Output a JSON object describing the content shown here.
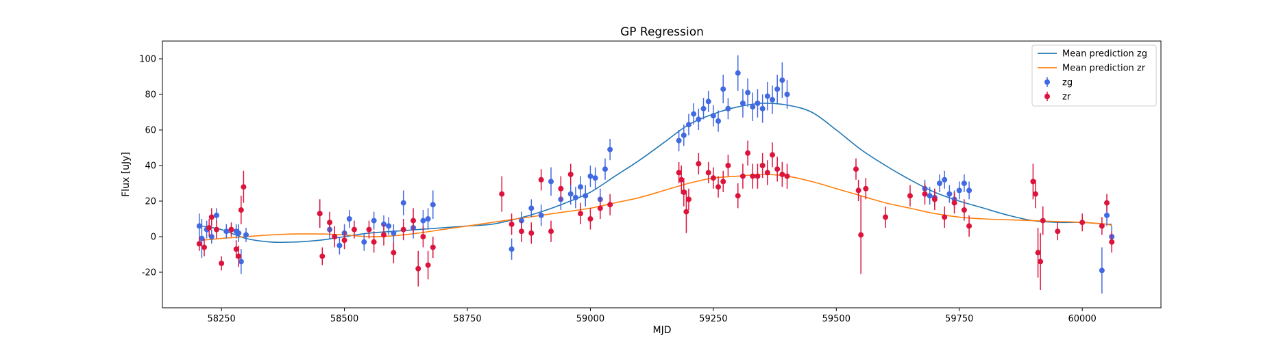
{
  "chart_data": {
    "type": "scatter",
    "title": "GP Regression",
    "xlabel": "MJD",
    "ylabel": "Flux [uJy]",
    "xlim": [
      58130,
      60160
    ],
    "ylim": [
      -40,
      110
    ],
    "xticks": [
      58250,
      58500,
      58750,
      59000,
      59250,
      59500,
      59750,
      60000
    ],
    "yticks": [
      -20,
      0,
      20,
      40,
      60,
      80,
      100
    ],
    "grid": false,
    "legend_position": "top-right",
    "colors": {
      "mean_zg": "#1f77b4",
      "mean_zr": "#ff7f0e",
      "obs_zg": "#4169e1",
      "obs_zr": "#dc143c"
    },
    "series": [
      {
        "name": "Mean prediction zg",
        "kind": "line",
        "x": [
          58210,
          58250,
          58300,
          58350,
          58400,
          58450,
          58500,
          58550,
          58600,
          58650,
          58700,
          58750,
          58800,
          58850,
          58900,
          58950,
          59000,
          59050,
          59100,
          59150,
          59200,
          59250,
          59300,
          59350,
          59400,
          59450,
          59500,
          59550,
          59600,
          59650,
          59700,
          59750,
          59800,
          59850,
          59900,
          59950,
          60000,
          60050,
          60060
        ],
        "y": [
          6,
          4,
          -1,
          -3,
          -3,
          -2,
          0,
          2,
          3,
          4,
          5,
          6,
          7,
          10,
          14,
          19,
          25,
          34,
          43,
          53,
          63,
          69,
          73,
          75,
          74,
          70,
          60,
          49,
          40,
          32,
          25,
          20,
          16,
          12,
          9,
          8,
          8,
          7,
          7
        ]
      },
      {
        "name": "Mean prediction zr",
        "kind": "line",
        "x": [
          58210,
          58250,
          58300,
          58350,
          58400,
          58450,
          58500,
          58550,
          58600,
          58650,
          58700,
          58750,
          58800,
          58850,
          58900,
          58950,
          59000,
          59050,
          59100,
          59150,
          59200,
          59250,
          59300,
          59350,
          59400,
          59450,
          59500,
          59550,
          59600,
          59650,
          59700,
          59750,
          59800,
          59850,
          59900,
          59950,
          60000,
          60050,
          60060
        ],
        "y": [
          -2,
          -1,
          0,
          1,
          1.5,
          1.5,
          1,
          0,
          0.5,
          2,
          4,
          6,
          8,
          10,
          12,
          14,
          16,
          19,
          22,
          26,
          30,
          33,
          34,
          35,
          34,
          31,
          27,
          23,
          19,
          16,
          13,
          11,
          10,
          9.5,
          9,
          8.5,
          8,
          7,
          6
        ]
      },
      {
        "name": "zg",
        "kind": "errorbar",
        "x": [
          58205,
          58210,
          58220,
          58230,
          58240,
          58260,
          58280,
          58285,
          58290,
          58300,
          58450,
          58470,
          58490,
          58500,
          58510,
          58540,
          58560,
          58580,
          58590,
          58600,
          58620,
          58640,
          58660,
          58670,
          58680,
          58840,
          58860,
          58880,
          58900,
          58920,
          58940,
          58960,
          58970,
          58980,
          58990,
          59000,
          59010,
          59020,
          59030,
          59040,
          59180,
          59190,
          59200,
          59210,
          59220,
          59230,
          59240,
          59250,
          59260,
          59270,
          59280,
          59300,
          59310,
          59320,
          59330,
          59340,
          59350,
          59360,
          59370,
          59380,
          59390,
          59400,
          59680,
          59690,
          59700,
          59710,
          59720,
          59730,
          59740,
          59750,
          59760,
          59770,
          60040,
          60050,
          60060
        ],
        "y": [
          6,
          -1,
          4,
          0,
          12,
          3,
          3,
          2,
          -14,
          1,
          13,
          4,
          -5,
          2,
          10,
          -3,
          9,
          7,
          6,
          2,
          19,
          5,
          9,
          10,
          18,
          -7,
          9,
          16,
          12,
          31,
          21,
          24,
          22,
          28,
          23,
          34,
          33,
          21,
          38,
          49,
          54,
          57,
          63,
          69,
          66,
          72,
          76,
          68,
          65,
          83,
          72,
          92,
          75,
          81,
          73,
          75,
          72,
          79,
          77,
          83,
          88,
          80,
          27,
          23,
          22,
          30,
          32,
          24,
          21,
          26,
          30,
          26,
          -19,
          12,
          0
        ],
        "err": [
          7,
          11,
          5,
          4,
          4,
          4,
          4,
          5,
          7,
          4,
          8,
          5,
          5,
          5,
          5,
          5,
          5,
          5,
          5,
          5,
          7,
          6,
          6,
          6,
          8,
          6,
          5,
          5,
          6,
          8,
          6,
          6,
          6,
          6,
          6,
          6,
          6,
          6,
          6,
          6,
          6,
          6,
          6,
          6,
          6,
          6,
          6,
          6,
          6,
          8,
          6,
          10,
          8,
          8,
          8,
          8,
          8,
          8,
          8,
          8,
          10,
          8,
          5,
          5,
          5,
          5,
          5,
          5,
          5,
          5,
          5,
          5,
          13,
          6,
          6
        ]
      },
      {
        "name": "zr",
        "kind": "errorbar",
        "x": [
          58205,
          58215,
          58225,
          58230,
          58240,
          58250,
          58270,
          58280,
          58285,
          58290,
          58295,
          58450,
          58455,
          58470,
          58480,
          58500,
          58520,
          58550,
          58560,
          58580,
          58600,
          58620,
          58640,
          58650,
          58660,
          58670,
          58680,
          58820,
          58840,
          58860,
          58880,
          58900,
          58920,
          58940,
          58960,
          58980,
          59000,
          59020,
          59040,
          59180,
          59185,
          59190,
          59195,
          59200,
          59220,
          59240,
          59250,
          59260,
          59270,
          59280,
          59300,
          59310,
          59320,
          59330,
          59340,
          59350,
          59360,
          59370,
          59380,
          59390,
          59400,
          59540,
          59545,
          59550,
          59560,
          59600,
          59650,
          59680,
          59700,
          59720,
          59740,
          59760,
          59770,
          59900,
          59905,
          59910,
          59915,
          59920,
          59950,
          60000,
          60040,
          60050,
          60060
        ],
        "y": [
          -4,
          -6,
          5,
          11,
          4,
          -15,
          4,
          -7,
          -11,
          15,
          28,
          13,
          -11,
          8,
          0,
          -2,
          4,
          4,
          -3,
          1,
          -9,
          4,
          9,
          -18,
          0,
          -16,
          -6,
          24,
          7,
          3,
          2,
          32,
          3,
          27,
          35,
          13,
          10,
          16,
          18,
          36,
          32,
          25,
          14,
          21,
          41,
          36,
          33,
          28,
          31,
          40,
          23,
          34,
          47,
          34,
          34,
          40,
          36,
          46,
          38,
          35,
          34,
          38,
          26,
          1,
          27,
          11,
          23,
          24,
          21,
          11,
          19,
          15,
          6,
          31,
          24,
          -9,
          -14,
          9,
          3,
          8,
          6,
          19,
          -3
        ],
        "err": [
          4,
          5,
          5,
          5,
          5,
          4,
          4,
          5,
          6,
          8,
          9,
          8,
          5,
          6,
          6,
          5,
          5,
          5,
          6,
          6,
          6,
          6,
          7,
          10,
          6,
          8,
          6,
          10,
          6,
          6,
          6,
          6,
          6,
          7,
          6,
          6,
          6,
          6,
          6,
          6,
          8,
          8,
          12,
          6,
          6,
          6,
          6,
          6,
          6,
          6,
          7,
          7,
          7,
          7,
          7,
          7,
          7,
          7,
          7,
          7,
          7,
          6,
          6,
          22,
          6,
          6,
          6,
          6,
          6,
          6,
          6,
          6,
          6,
          10,
          8,
          14,
          16,
          8,
          5,
          5,
          5,
          5,
          6
        ]
      }
    ]
  }
}
